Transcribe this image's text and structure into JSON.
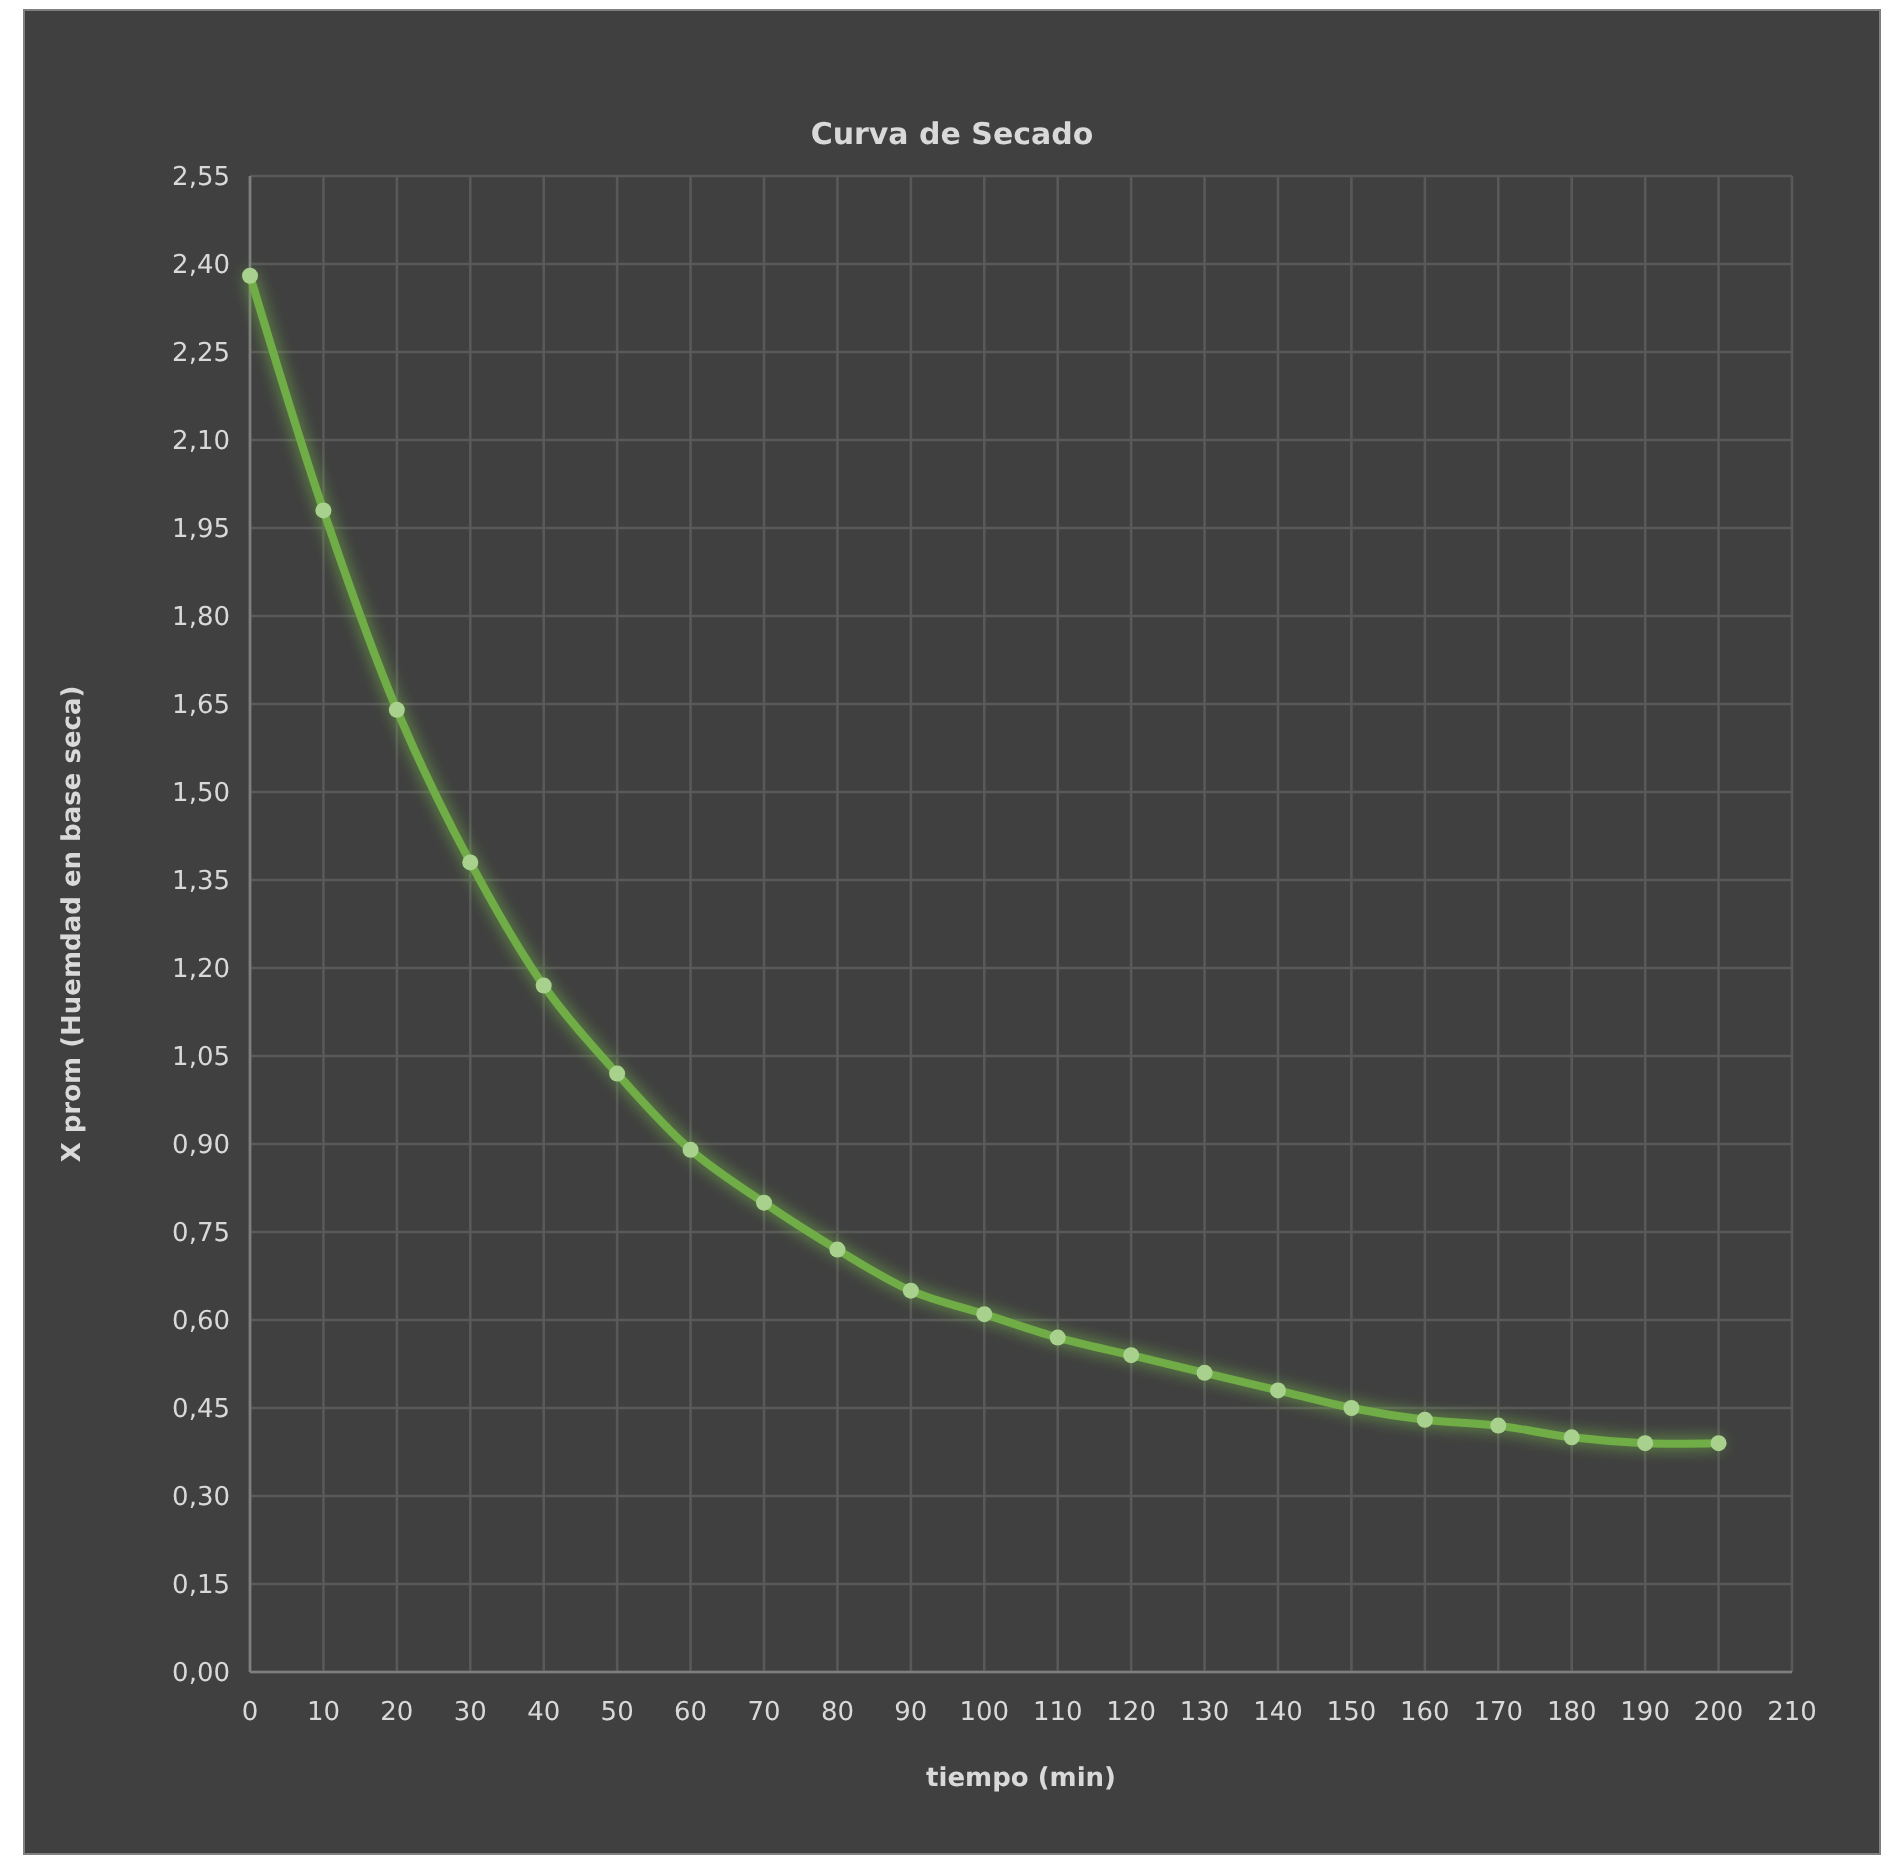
{
  "chart_data": {
    "type": "line",
    "title": "Curva de Secado",
    "xlabel": "tiempo (min)",
    "ylabel": "X prom (Huemdad en base seca)",
    "x": [
      0,
      10,
      20,
      30,
      40,
      50,
      60,
      70,
      80,
      90,
      100,
      110,
      120,
      130,
      140,
      150,
      160,
      170,
      180,
      190,
      200
    ],
    "series": [
      {
        "color": "#70ad47",
        "values": [
          2.38,
          1.98,
          1.64,
          1.38,
          1.17,
          1.02,
          0.89,
          0.8,
          0.72,
          0.65,
          0.61,
          0.57,
          0.54,
          0.51,
          0.48,
          0.45,
          0.43,
          0.42,
          0.4,
          0.39,
          0.39
        ]
      }
    ],
    "xlim": [
      0,
      210
    ],
    "xticks": [
      0,
      10,
      20,
      30,
      40,
      50,
      60,
      70,
      80,
      90,
      100,
      110,
      120,
      130,
      140,
      150,
      160,
      170,
      180,
      190,
      200,
      210
    ],
    "ylim": [
      0,
      2.55
    ],
    "yticks": [
      {
        "value": 0,
        "label": "0,00"
      },
      {
        "value": 0.15,
        "label": "0,15"
      },
      {
        "value": 0.3,
        "label": "0,30"
      },
      {
        "value": 0.45,
        "label": "0,45"
      },
      {
        "value": 0.6,
        "label": "0,60"
      },
      {
        "value": 0.75,
        "label": "0,75"
      },
      {
        "value": 0.9,
        "label": "0,90"
      },
      {
        "value": 1.05,
        "label": "1,05"
      },
      {
        "value": 1.2,
        "label": "1,20"
      },
      {
        "value": 1.35,
        "label": "1,35"
      },
      {
        "value": 1.5,
        "label": "1,50"
      },
      {
        "value": 1.65,
        "label": "1,65"
      },
      {
        "value": 1.8,
        "label": "1,80"
      },
      {
        "value": 1.95,
        "label": "1,95"
      },
      {
        "value": 2.1,
        "label": "2,10"
      },
      {
        "value": 2.25,
        "label": "2,25"
      },
      {
        "value": 2.4,
        "label": "2,40"
      },
      {
        "value": 2.55,
        "label": "2,55"
      }
    ],
    "grid": true,
    "marker": "circle",
    "line_style": "solid"
  }
}
